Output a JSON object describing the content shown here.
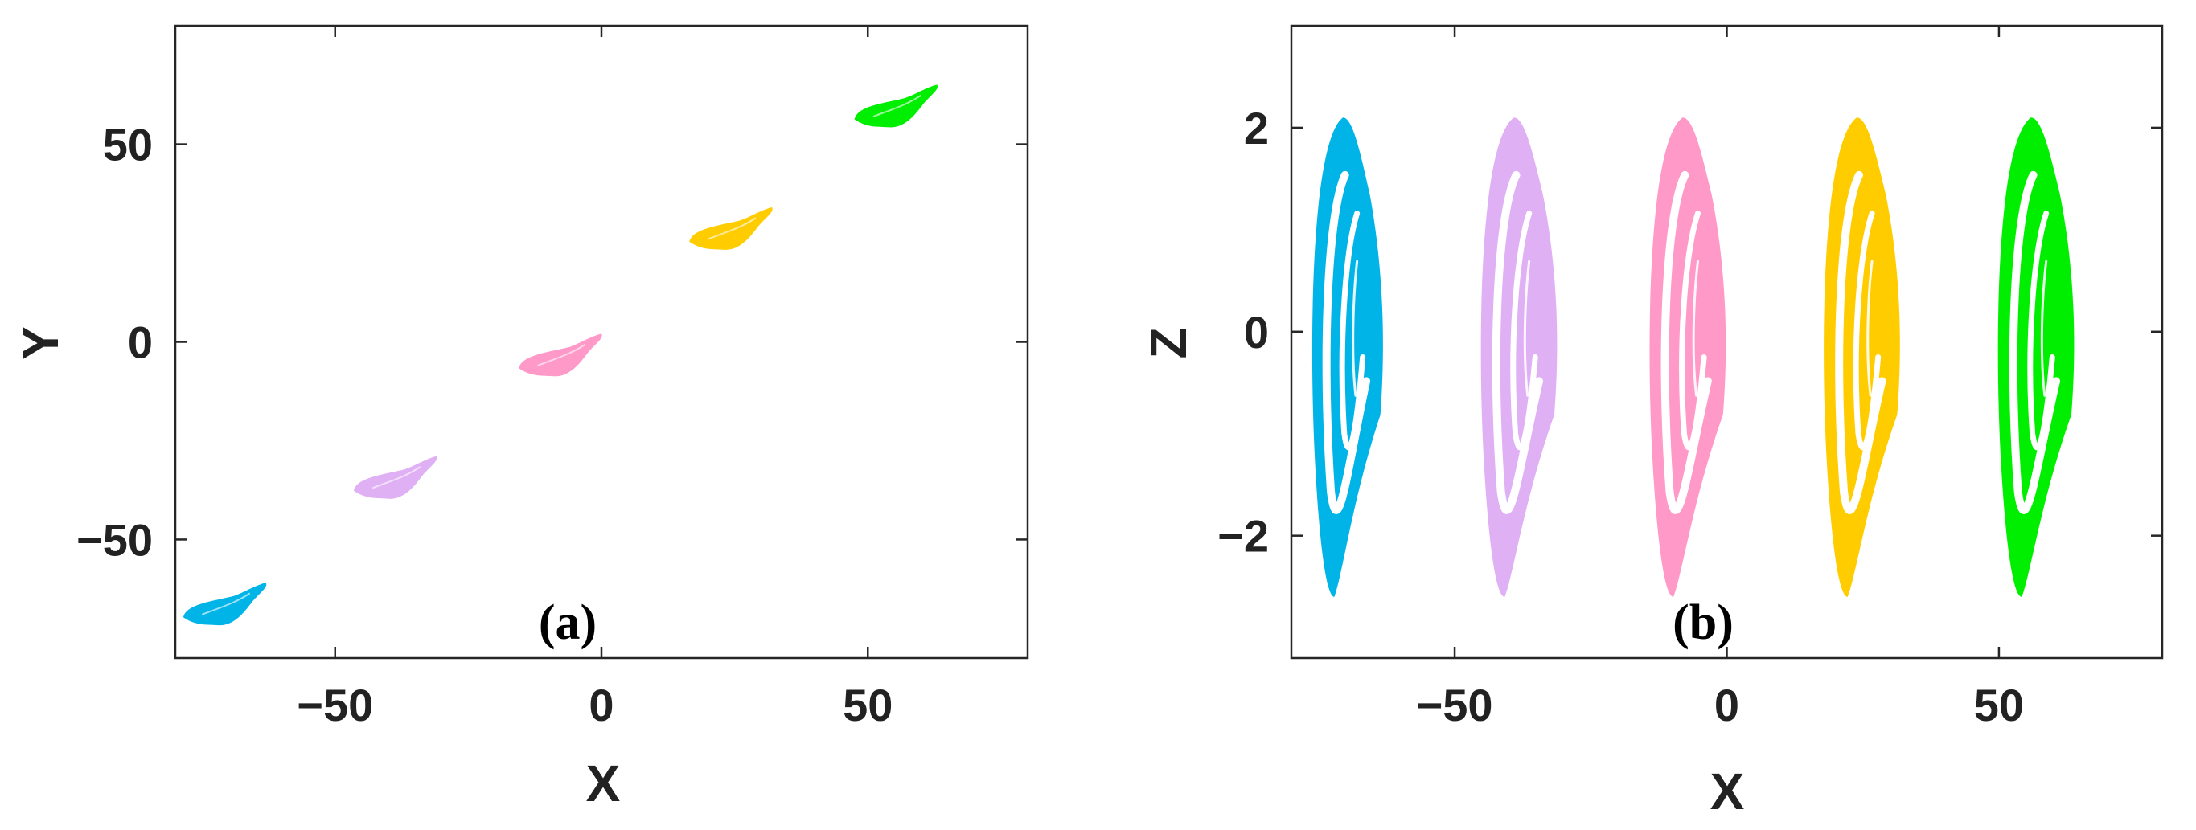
{
  "chart_data": [
    {
      "panel": "(a)",
      "type": "scatter",
      "xlabel": "X",
      "ylabel": "Y",
      "xlim": [
        -80,
        80
      ],
      "ylim": [
        -80,
        80
      ],
      "xticks": [
        -50,
        0,
        50
      ],
      "yticks": [
        -50,
        0,
        50
      ],
      "xticklabels": [
        "−50",
        "0",
        "50"
      ],
      "yticklabels": [
        "−50",
        "0",
        "50"
      ],
      "grid": false,
      "series": [
        {
          "color": "#00b4e8",
          "center": [
            -70,
            -69
          ]
        },
        {
          "color": "#e0b0f5",
          "center": [
            -38,
            -37
          ]
        },
        {
          "color": "#ff99c8",
          "center": [
            -7,
            -6
          ]
        },
        {
          "color": "#ffcc00",
          "center": [
            25,
            26
          ]
        },
        {
          "color": "#00ee00",
          "center": [
            56,
            57
          ]
        }
      ]
    },
    {
      "panel": "(b)",
      "type": "line",
      "xlabel": "X",
      "ylabel": "Z",
      "xlim": [
        -80,
        80
      ],
      "ylim": [
        -3.2,
        3
      ],
      "xticks": [
        -50,
        0,
        50
      ],
      "yticks": [
        -2,
        0,
        2
      ],
      "xticklabels": [
        "−50",
        "0",
        "50"
      ],
      "yticklabels": [
        "−2",
        "0",
        "2"
      ],
      "grid": false,
      "series": [
        {
          "color": "#00b4e8",
          "x_center": -70,
          "x_span": [
            -76,
            -63
          ],
          "z_range": [
            -2.6,
            2.1
          ]
        },
        {
          "color": "#e0b0f5",
          "x_center": -38,
          "x_span": [
            -45,
            -31
          ],
          "z_range": [
            -2.6,
            2.1
          ]
        },
        {
          "color": "#ff99c8",
          "x_center": -7,
          "x_span": [
            -14,
            0
          ],
          "z_range": [
            -2.6,
            2.1
          ]
        },
        {
          "color": "#ffcc00",
          "x_center": 25,
          "x_span": [
            18,
            32
          ],
          "z_range": [
            -2.6,
            2.1
          ]
        },
        {
          "color": "#00ee00",
          "x_center": 56,
          "x_span": [
            50,
            64
          ],
          "z_range": [
            -2.6,
            2.1
          ]
        }
      ]
    }
  ]
}
